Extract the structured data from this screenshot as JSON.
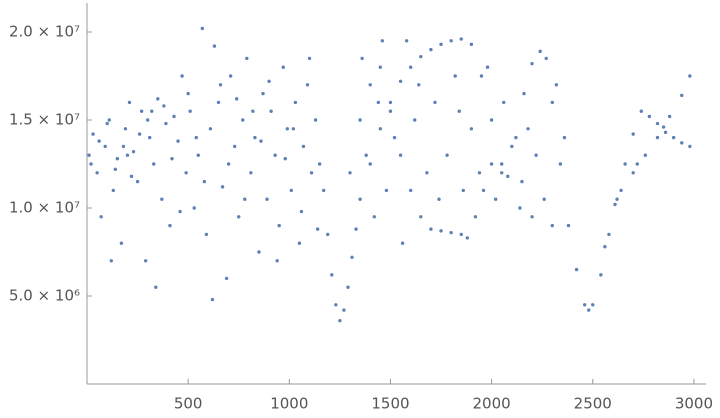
{
  "chart_data": {
    "type": "scatter",
    "color": "#5e81b5",
    "xlim": [
      0,
      3040
    ],
    "ylim": [
      0,
      21500000
    ],
    "xticks": [
      500,
      1000,
      1500,
      2000,
      2500,
      3000
    ],
    "yticks": [
      {
        "value": 5000000,
        "label": "5.0 × 10⁶"
      },
      {
        "value": 10000000,
        "label": "1.0 × 10⁷"
      },
      {
        "value": 15000000,
        "label": "1.5 × 10⁷"
      },
      {
        "value": 20000000,
        "label": "2.0 × 10⁷"
      }
    ],
    "x": [
      10,
      30,
      50,
      70,
      90,
      110,
      130,
      150,
      170,
      190,
      210,
      230,
      250,
      270,
      290,
      310,
      330,
      350,
      370,
      390,
      410,
      430,
      450,
      470,
      490,
      510,
      530,
      550,
      570,
      590,
      610,
      630,
      650,
      670,
      690,
      710,
      730,
      750,
      770,
      790,
      810,
      830,
      850,
      870,
      890,
      910,
      930,
      950,
      970,
      990,
      1010,
      1030,
      1050,
      1070,
      1090,
      1110,
      1130,
      1150,
      20,
      60,
      100,
      140,
      180,
      220,
      260,
      300,
      340,
      380,
      420,
      460,
      500,
      540,
      580,
      620,
      660,
      700,
      740,
      780,
      820,
      860,
      900,
      940,
      980,
      1020,
      1060,
      1100,
      1140,
      120,
      200,
      320,
      1170,
      1190,
      1210,
      1230,
      1250,
      1270,
      1290,
      1310,
      1330,
      1350,
      1400,
      1450,
      1500,
      1550,
      1600,
      1650,
      1700,
      1750,
      1800,
      1850,
      1900,
      1950,
      2000,
      2050,
      2080,
      2120,
      2160,
      2200,
      2240,
      2270,
      2300,
      2340,
      2380,
      2420,
      2460,
      2480,
      2500,
      2540,
      2580,
      2620,
      2660,
      2700,
      2740,
      2780,
      2820,
      2860,
      2900,
      2940,
      2980,
      2560,
      2640,
      2700,
      2760,
      2820,
      2880,
      2940,
      2980,
      2610,
      2720,
      2850,
      1300,
      1350,
      1400,
      1450,
      1500,
      1550,
      1600,
      1650,
      1700,
      1750,
      1800,
      1850,
      1880,
      1920,
      1960,
      2000,
      2050,
      2100,
      2150,
      2200,
      1380,
      1420,
      1480,
      1520,
      1580,
      1620,
      1680,
      1720,
      1780,
      1820,
      1860,
      1900,
      1940,
      1980,
      2020,
      2060,
      2140,
      2180,
      2220,
      2260,
      2300,
      2320,
      2360,
      1460,
      1560,
      1640,
      1740,
      1840,
      1360,
      1440
    ],
    "values": [
      13000000.0,
      14200000.0,
      12000000.0,
      9500000.0,
      13500000.0,
      15000000.0,
      11000000.0,
      12800000.0,
      8000000.0,
      14500000.0,
      16000000.0,
      13200000.0,
      11500000.0,
      15500000.0,
      7000000.0,
      14000000.0,
      12500000.0,
      16200000.0,
      10500000.0,
      14800000.0,
      9000000.0,
      15200000.0,
      13800000.0,
      17500000.0,
      12000000.0,
      15500000.0,
      10000000.0,
      13000000.0,
      20200000.0,
      8500000.0,
      14500000.0,
      19200000.0,
      16000000.0,
      11200000.0,
      6000000.0,
      17500000.0,
      13500000.0,
      9500000.0,
      15000000.0,
      18500000.0,
      12000000.0,
      14000000.0,
      7500000.0,
      16500000.0,
      10500000.0,
      15500000.0,
      13000000.0,
      9000000.0,
      18000000.0,
      14500000.0,
      11000000.0,
      16000000.0,
      8000000.0,
      13500000.0,
      17000000.0,
      12000000.0,
      15000000.0,
      12500000.0,
      12500000.0,
      13800000.0,
      14800000.0,
      12200000.0,
      13500000.0,
      11800000.0,
      14200000.0,
      15000000.0,
      5500000.0,
      15800000.0,
      12800000.0,
      9800000.0,
      16500000.0,
      14000000.0,
      11500000.0,
      4800000.0,
      17000000.0,
      12500000.0,
      16200000.0,
      10500000.0,
      15500000.0,
      13800000.0,
      17200000.0,
      7000000.0,
      12800000.0,
      14500000.0,
      9800000.0,
      18500000.0,
      8800000.0,
      7000000.0,
      13000000.0,
      15500000.0,
      11000000.0,
      8500000.0,
      6200000.0,
      4500000.0,
      3600000.0,
      4200000.0,
      5500000.0,
      7200000.0,
      8800000.0,
      10500000.0,
      12500000.0,
      14500000.0,
      16000000.0,
      17200000.0,
      18000000.0,
      18600000.0,
      19000000.0,
      19300000.0,
      19500000.0,
      19600000.0,
      19300000.0,
      17500000.0,
      15000000.0,
      12500000.0,
      11800000.0,
      14000000.0,
      16500000.0,
      18200000.0,
      18900000.0,
      18500000.0,
      16000000.0,
      12500000.0,
      9000000.0,
      6500000.0,
      4500000.0,
      4200000.0,
      4500000.0,
      6200000.0,
      8500000.0,
      10500000.0,
      12500000.0,
      14200000.0,
      15500000.0,
      15200000.0,
      14800000.0,
      14300000.0,
      14000000.0,
      13700000.0,
      13500000.0,
      7800000.0,
      11000000.0,
      12000000.0,
      13000000.0,
      14000000.0,
      15200000.0,
      16400000.0,
      17500000.0,
      10200000.0,
      12500000.0,
      14600000.0,
      12000000.0,
      15000000.0,
      17000000.0,
      18000000.0,
      15500000.0,
      13000000.0,
      11000000.0,
      9500000.0,
      8800000.0,
      8700000.0,
      8600000.0,
      8500000.0,
      8300000.0,
      9500000.0,
      11000000.0,
      12500000.0,
      12000000.0,
      13500000.0,
      11500000.0,
      9500000.0,
      13000000.0,
      9500000.0,
      11000000.0,
      14000000.0,
      19500000.0,
      15000000.0,
      12000000.0,
      16000000.0,
      13000000.0,
      17500000.0,
      11000000.0,
      14500000.0,
      12000000.0,
      18000000.0,
      10500000.0,
      16000000.0,
      10000000.0,
      14500000.0,
      13000000.0,
      10500000.0,
      9000000.0,
      17000000.0,
      14000000.0,
      19500000.0,
      8000000.0,
      17000000.0,
      10500000.0,
      15500000.0,
      18500000.0,
      16000000.0
    ]
  }
}
